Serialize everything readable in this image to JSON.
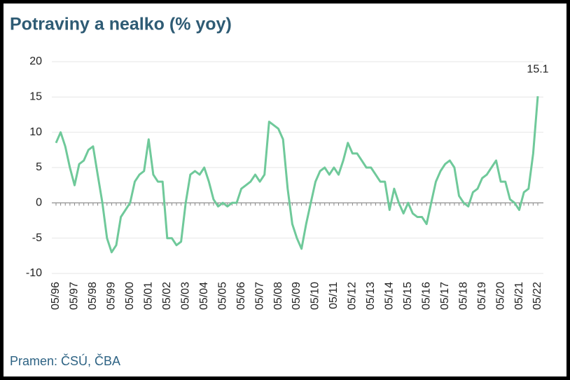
{
  "chart_data": {
    "type": "line",
    "title": "Potraviny a nealko (% yoy)",
    "source": "Pramen: ČSÚ, ČBA",
    "annotation": "15.1",
    "categories": [
      "05/96",
      null,
      null,
      null,
      "05/97",
      null,
      null,
      null,
      "05/98",
      null,
      null,
      null,
      "05/99",
      null,
      null,
      null,
      "05/00",
      null,
      null,
      null,
      "05/01",
      null,
      null,
      null,
      "05/02",
      null,
      null,
      null,
      "05/03",
      null,
      null,
      null,
      "05/04",
      null,
      null,
      null,
      "05/05",
      null,
      null,
      null,
      "05/06",
      null,
      null,
      null,
      "05/07",
      null,
      null,
      null,
      "05/08",
      null,
      null,
      null,
      "05/09",
      null,
      null,
      null,
      "05/10",
      null,
      null,
      null,
      "05/11",
      null,
      null,
      null,
      "05/12",
      null,
      null,
      null,
      "05/13",
      null,
      null,
      null,
      "05/14",
      null,
      null,
      null,
      "05/15",
      null,
      null,
      null,
      "05/16",
      null,
      null,
      null,
      "05/17",
      null,
      null,
      null,
      "05/18",
      null,
      null,
      null,
      "05/19",
      null,
      null,
      null,
      "05/20",
      null,
      null,
      null,
      "05/21",
      null,
      null,
      null,
      "05/22"
    ],
    "values": [
      8.5,
      10,
      8,
      5,
      2.5,
      5.5,
      6,
      7.5,
      8,
      4,
      0,
      -5,
      -7,
      -6,
      -2,
      -1,
      0,
      3,
      4,
      4.5,
      9,
      4,
      3,
      3,
      -5,
      -5,
      -6,
      -5.5,
      0,
      4,
      4.5,
      4,
      5,
      3,
      0.5,
      -0.5,
      0,
      -0.5,
      0,
      0,
      2,
      2.5,
      3,
      4,
      3,
      4,
      11.5,
      11,
      10.5,
      9,
      2,
      -3,
      -5,
      -6.5,
      -3,
      0,
      3,
      4.5,
      5,
      4,
      5,
      4,
      6,
      8.5,
      7,
      7,
      6,
      5,
      5,
      4,
      3,
      3,
      -1,
      2,
      0,
      -1.5,
      0,
      -1.5,
      -2,
      -2,
      -3,
      0,
      3,
      4.5,
      5.5,
      6,
      5,
      1,
      0,
      -0.5,
      1.5,
      2,
      3.5,
      4,
      5,
      6,
      3,
      3,
      0.5,
      0,
      -1,
      1.5,
      2,
      7,
      15.1
    ],
    "color": "#6fc99a",
    "ylim": [
      -10,
      20
    ],
    "yticks": [
      -10,
      -5,
      0,
      5,
      10,
      15,
      20
    ],
    "grid": true
  }
}
